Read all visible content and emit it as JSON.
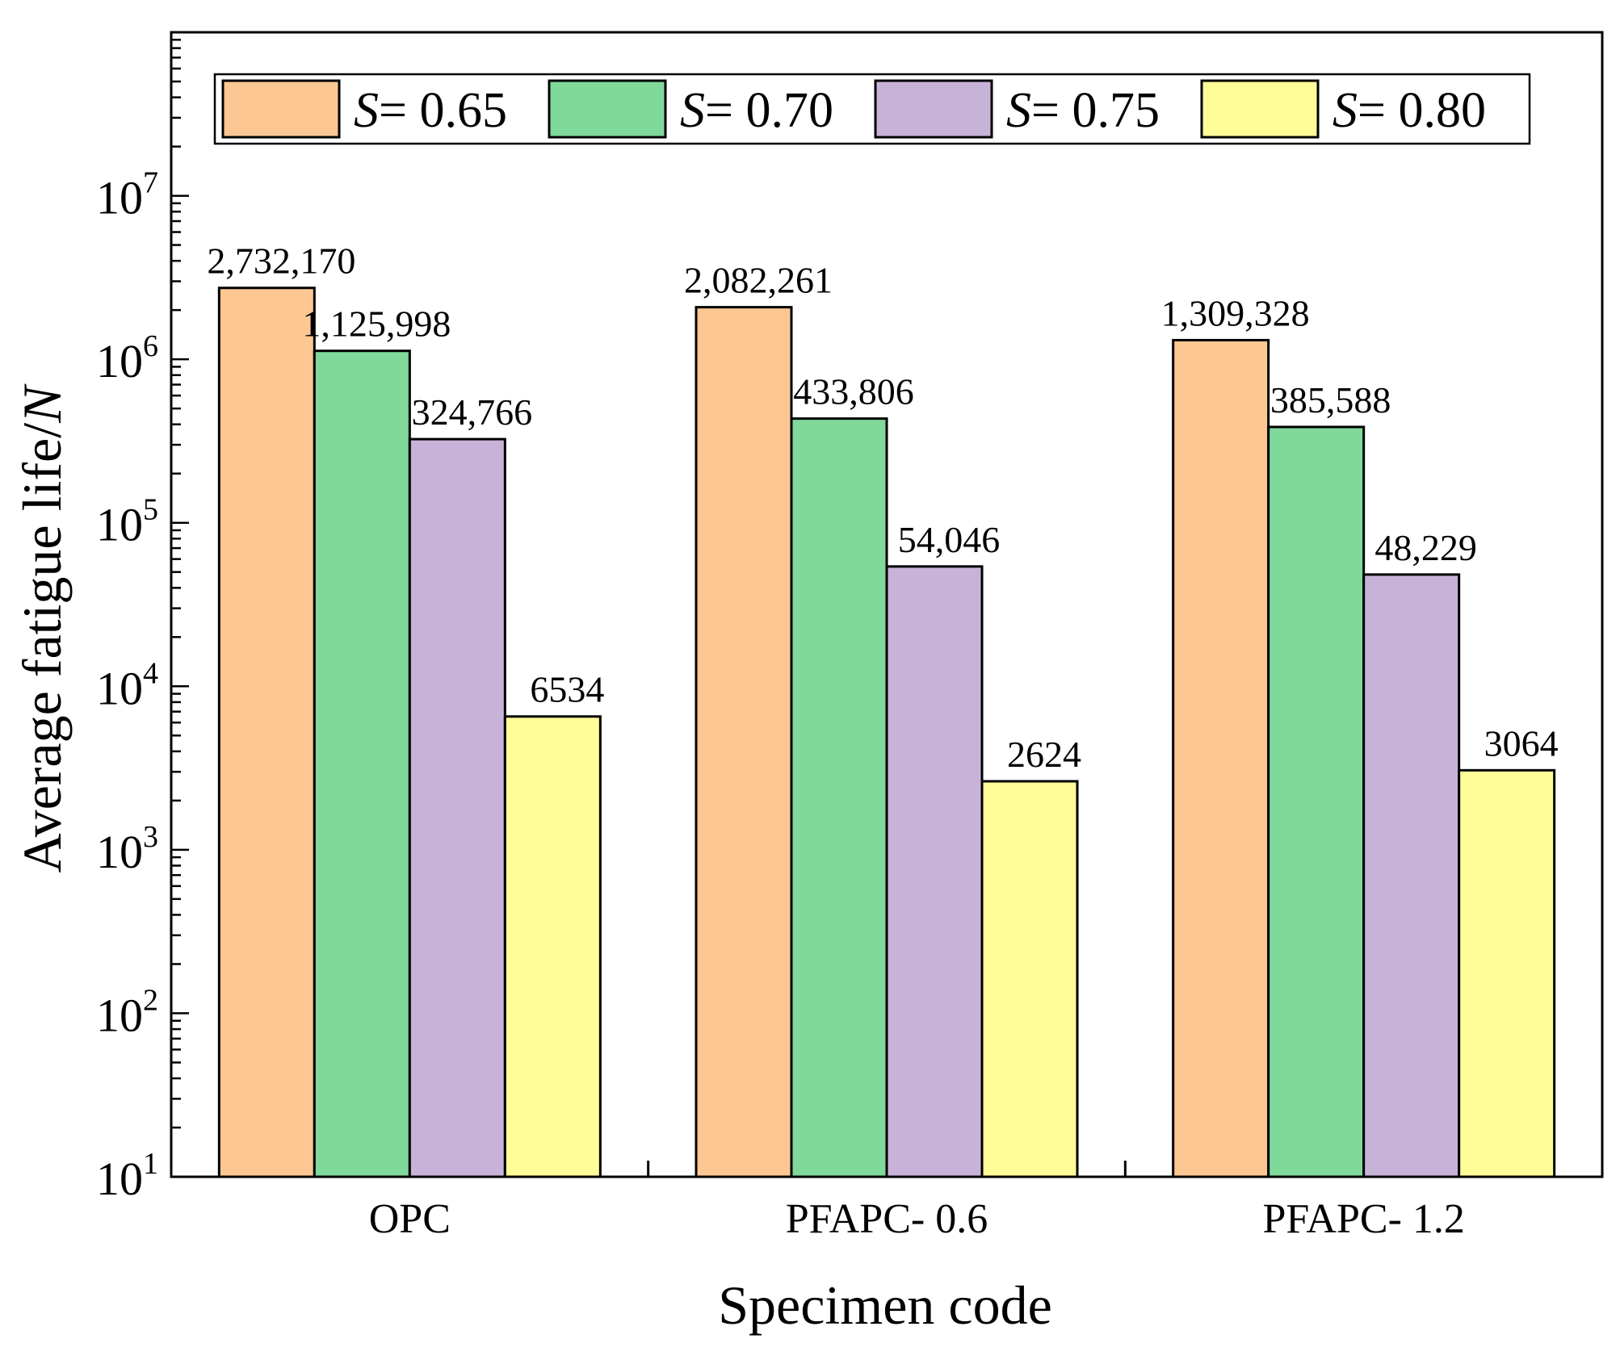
{
  "chart_data": {
    "type": "bar",
    "scale": "log",
    "xlabel": "Specimen code",
    "ylabel_text": "Average fatigue life/",
    "ylabel_var": "N",
    "categories": [
      "OPC",
      "PFAPC- 0.6",
      "PFAPC- 1.2"
    ],
    "ylim": [
      10,
      100000000
    ],
    "yticks": [
      {
        "base": "10",
        "exp": "1",
        "value": 10
      },
      {
        "base": "10",
        "exp": "2",
        "value": 100
      },
      {
        "base": "10",
        "exp": "3",
        "value": 1000
      },
      {
        "base": "10",
        "exp": "4",
        "value": 10000
      },
      {
        "base": "10",
        "exp": "5",
        "value": 100000
      },
      {
        "base": "10",
        "exp": "6",
        "value": 1000000
      },
      {
        "base": "10",
        "exp": "7",
        "value": 10000000
      }
    ],
    "series": [
      {
        "name_var": "S",
        "name_rest": "= 0.65",
        "color": "#FDC793",
        "values": [
          2732170,
          2082261,
          1309328
        ],
        "labels": [
          "2,732,170",
          "2,082,261",
          "1,309,328"
        ]
      },
      {
        "name_var": "S",
        "name_rest": "= 0.70",
        "color": "#7FD99A",
        "values": [
          1125998,
          433806,
          385588
        ],
        "labels": [
          "1,125,998",
          "433,806",
          "385,588"
        ]
      },
      {
        "name_var": "S",
        "name_rest": "= 0.75",
        "color": "#C8B3D8",
        "values": [
          324766,
          54046,
          48229
        ],
        "labels": [
          "324,766",
          "54,046",
          "48,229"
        ]
      },
      {
        "name_var": "S",
        "name_rest": "= 0.80",
        "color": "#FFFD98",
        "values": [
          6534,
          2624,
          3064
        ],
        "labels": [
          "6534",
          "2624",
          "3064"
        ]
      }
    ]
  }
}
